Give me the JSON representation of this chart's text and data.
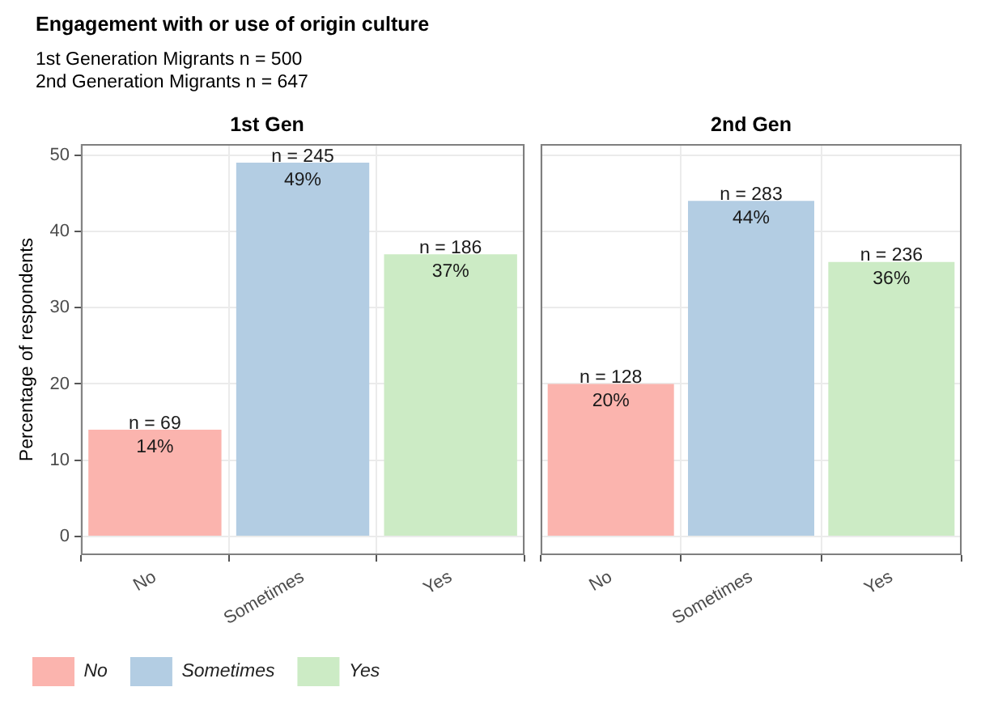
{
  "chart_data": [
    {
      "type": "other",
      "title": "Engagement with or use of origin culture",
      "subtitle": "1st Generation Migrants n = 500\n2nd Generation Migrants n = 647"
    },
    {
      "type": "bar",
      "title": "1st Gen",
      "ylabel": "Percentage of respondents",
      "categories": [
        "No",
        "Sometimes",
        "Yes"
      ],
      "series": [
        {
          "name": "No",
          "color": "#fbb4ae",
          "values": [
            14,
            null,
            null
          ],
          "value_labels": [
            "n = 69\n14%",
            null,
            null
          ]
        },
        {
          "name": "Sometimes",
          "color": "#b3cde3",
          "values": [
            null,
            49,
            null
          ],
          "value_labels": [
            null,
            "n = 245\n49%",
            null
          ]
        },
        {
          "name": "Yes",
          "color": "#ccebc5",
          "values": [
            null,
            null,
            37
          ],
          "value_labels": [
            null,
            null,
            "n = 186\n37%"
          ]
        }
      ],
      "ylim": [
        -2.45,
        51.45
      ],
      "yticks": [
        0,
        10,
        20,
        30,
        40,
        50
      ],
      "grid": true,
      "legend": "bottom left"
    },
    {
      "type": "bar",
      "title": "2nd Gen",
      "categories": [
        "No",
        "Sometimes",
        "Yes"
      ],
      "series": [
        {
          "color": "#fbb4ae",
          "values": [
            20,
            null,
            null
          ],
          "value_labels": [
            "n = 128\n20%",
            null,
            null
          ]
        },
        {
          "color": "#b3cde3",
          "values": [
            null,
            44,
            null
          ],
          "value_labels": [
            null,
            "n = 283\n44%",
            null
          ]
        },
        {
          "color": "#ccebc5",
          "values": [
            null,
            null,
            36
          ],
          "value_labels": [
            null,
            null,
            "n = 236\n36%"
          ]
        }
      ],
      "ylim": [
        -2.45,
        51.45
      ],
      "yticks": [
        0,
        10,
        20,
        30,
        40,
        50
      ],
      "grid": true,
      "tick_labels": "x"
    }
  ]
}
